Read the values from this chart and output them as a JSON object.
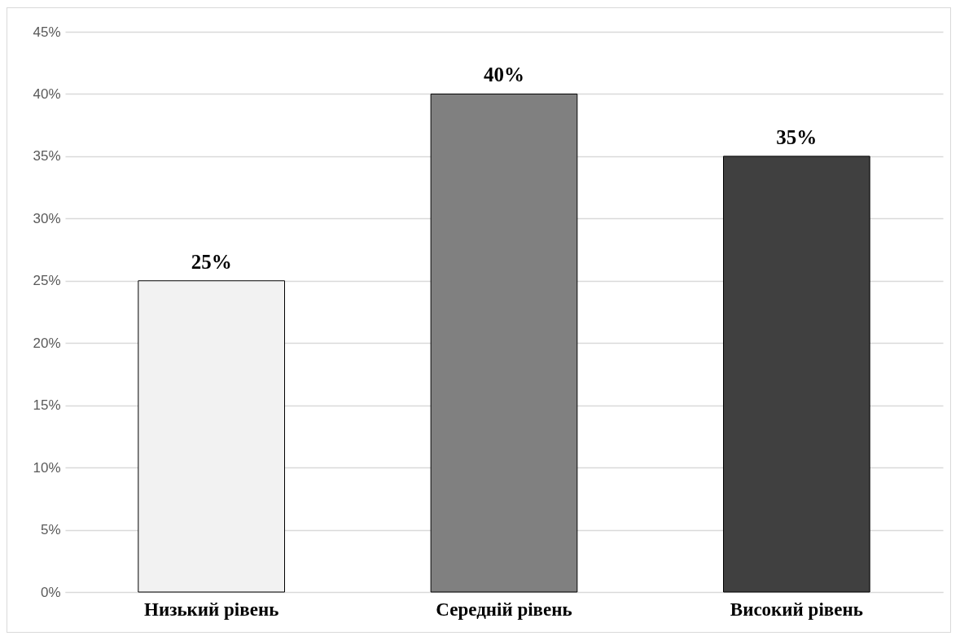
{
  "chart_data": {
    "type": "bar",
    "categories": [
      "Низький рівень",
      "Середній рівень",
      "Високий рівень"
    ],
    "values": [
      25,
      40,
      35
    ],
    "colors": [
      "#f2f2f2",
      "#808080",
      "#404040"
    ],
    "value_labels": [
      "25%",
      "40%",
      "35%"
    ],
    "ylim": [
      0,
      45
    ],
    "yticks": [
      {
        "value": 0,
        "label": "0%"
      },
      {
        "value": 5,
        "label": "5%"
      },
      {
        "value": 10,
        "label": "10%"
      },
      {
        "value": 15,
        "label": "15%"
      },
      {
        "value": 20,
        "label": "20%"
      },
      {
        "value": 25,
        "label": "25%"
      },
      {
        "value": 30,
        "label": "30%"
      },
      {
        "value": 35,
        "label": "35%"
      },
      {
        "value": 40,
        "label": "40%"
      },
      {
        "value": 45,
        "label": "45%"
      }
    ],
    "grid": "y"
  }
}
